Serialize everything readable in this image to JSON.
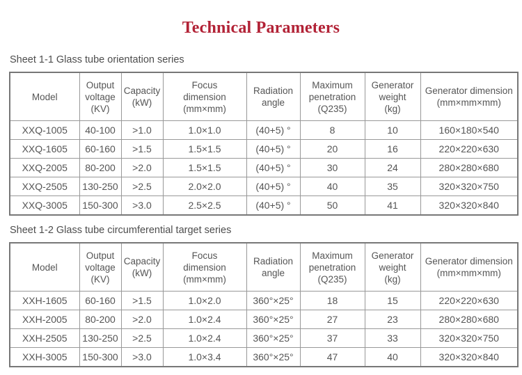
{
  "page": {
    "title": "Technical Parameters",
    "title_color": "#b22236"
  },
  "tables": [
    {
      "caption": "Sheet 1-1 Glass tube orientation series",
      "headers": [
        "Model",
        "Output\nvoltage\n(KV)",
        "Capacity\n(kW)",
        "Focus\ndimension\n(mm×mm)",
        "Radiation\nangle",
        "Maximum\npenetration\n(Q235)",
        "Generator\nweight\n(kg)",
        "Generator dimension\n(mm×mm×mm)"
      ],
      "rows": [
        [
          "XXQ-1005",
          "40-100",
          ">1.0",
          "1.0×1.0",
          "(40+5) °",
          "8",
          "10",
          "160×180×540"
        ],
        [
          "XXQ-1605",
          "60-160",
          ">1.5",
          "1.5×1.5",
          "(40+5) °",
          "20",
          "16",
          "220×220×630"
        ],
        [
          "XXQ-2005",
          "80-200",
          ">2.0",
          "1.5×1.5",
          "(40+5) °",
          "30",
          "24",
          "280×280×680"
        ],
        [
          "XXQ-2505",
          "130-250",
          ">2.5",
          "2.0×2.0",
          "(40+5) °",
          "40",
          "35",
          "320×320×750"
        ],
        [
          "XXQ-3005",
          "150-300",
          ">3.0",
          "2.5×2.5",
          "(40+5) °",
          "50",
          "41",
          "320×320×840"
        ]
      ]
    },
    {
      "caption": "Sheet 1-2 Glass tube circumferential target series",
      "headers": [
        "Model",
        "Output\nvoltage\n(KV)",
        "Capacity\n(kW)",
        "Focus\ndimension\n(mm×mm)",
        "Radiation\nangle",
        "Maximum\npenetration\n(Q235)",
        "Generator\nweight\n(kg)",
        "Generator dimension\n(mm×mm×mm)"
      ],
      "rows": [
        [
          "XXH-1605",
          "60-160",
          ">1.5",
          "1.0×2.0",
          "360°×25°",
          "18",
          "15",
          "220×220×630"
        ],
        [
          "XXH-2005",
          "80-200",
          ">2.0",
          "1.0×2.4",
          "360°×25°",
          "27",
          "23",
          "280×280×680"
        ],
        [
          "XXH-2505",
          "130-250",
          ">2.5",
          "1.0×2.4",
          "360°×25°",
          "37",
          "33",
          "320×320×750"
        ],
        [
          "XXH-3005",
          "150-300",
          ">3.0",
          "1.0×3.4",
          "360°×25°",
          "47",
          "40",
          "320×320×840"
        ]
      ]
    }
  ]
}
